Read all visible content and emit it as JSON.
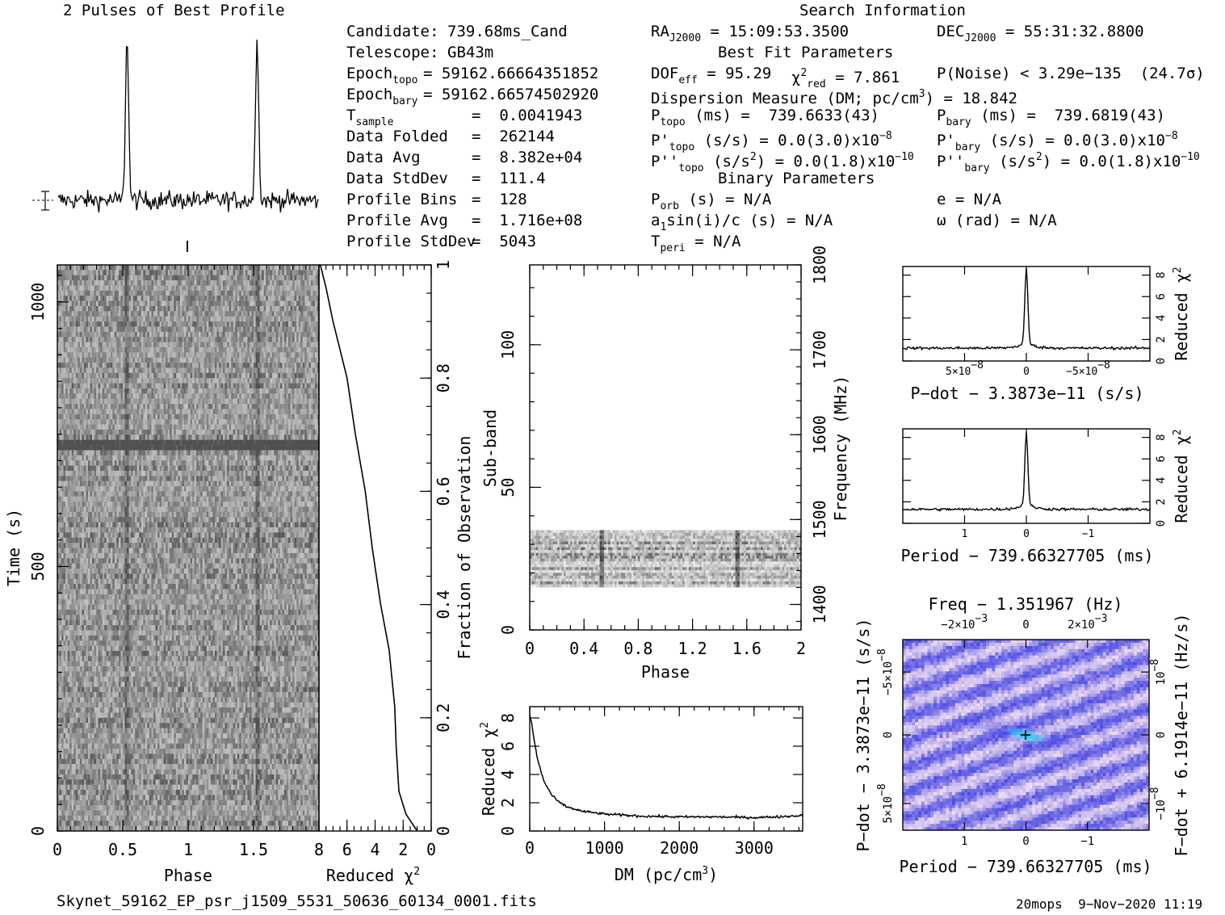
{
  "header": {
    "profile_title": "2 Pulses of Best Profile",
    "search_title": "Search Information",
    "best_fit_title": "Best Fit Parameters",
    "binary_title": "Binary Parameters"
  },
  "info_left": [
    {
      "label": "Candidate:",
      "value": "739.68ms_Cand"
    },
    {
      "label": "Telescope:",
      "value": "GB43m"
    },
    {
      "label": "Epoch",
      "sub": "topo",
      "value": "= 59162.66664351852"
    },
    {
      "label": "Epoch",
      "sub": "bary",
      "value": "= 59162.66574502920"
    },
    {
      "label": "T",
      "sub": "sample",
      "value": "=  0.0041943"
    },
    {
      "label": "Data Folded",
      "value": "=  262144"
    },
    {
      "label": "Data Avg",
      "value": "=  8.382e+04"
    },
    {
      "label": "Data StdDev",
      "value": "=  111.4"
    },
    {
      "label": "Profile Bins",
      "value": "=  128"
    },
    {
      "label": "Profile Avg",
      "value": "=  1.716e+08"
    },
    {
      "label": "Profile StdDev",
      "value": "=  5043"
    }
  ],
  "info_right": {
    "ra": {
      "label": "RA",
      "sub": "J2000",
      "value": "= 15:09:53.3500"
    },
    "dec": {
      "label": "DEC",
      "sub": "J2000",
      "value": "= 55:31:32.8800"
    },
    "dof": {
      "label": "DOF",
      "sub": "eff",
      "value": "= 95.29"
    },
    "chi2": {
      "label": "χ",
      "sup": "2",
      "sub": "red",
      "value": "= 7.861"
    },
    "pnoise": "P(Noise) < 3.29e−135  (24.7σ)",
    "dm": {
      "label": "Dispersion Measure (DM; pc/cm",
      "sup": "3",
      "value": ") = 18.842"
    },
    "p_topo": {
      "label": "P",
      "sub": "topo",
      "value": "(ms) =  739.6633(43)"
    },
    "p_bary": {
      "label": "P",
      "sub": "bary",
      "value": "(ms) =  739.6819(43)"
    },
    "pd_topo": {
      "label": "P'",
      "sub": "topo",
      "value": "(s/s) = 0.0(3.0)x10",
      "exp": "−8"
    },
    "pd_bary": {
      "label": "P'",
      "sub": "bary",
      "value": "(s/s) = 0.0(3.0)x10",
      "exp": "−8"
    },
    "pdd_topo": {
      "label": "P''",
      "sub": "topo",
      "value": "(s/s",
      "sup": "2",
      "value2": ") = 0.0(1.8)x10",
      "exp": "−10"
    },
    "pdd_bary": {
      "label": "P''",
      "sub": "bary",
      "value": "(s/s",
      "sup": "2",
      "value2": ") = 0.0(1.8)x10",
      "exp": "−10"
    },
    "porb": {
      "label": "P",
      "sub": "orb",
      "value": "(s) = N/A"
    },
    "e": "e = N/A",
    "a1": {
      "label": "a",
      "sub": "1",
      "value": "sin(i)/c (s) = N/A"
    },
    "omega": "ω (rad) = N/A",
    "tperi": {
      "label": "T",
      "sub": "peri",
      "value": "= N/A"
    }
  },
  "footer": {
    "filename": "Skynet_59162_EP_psr_j1509_5531_50636_60134_0001.fits",
    "stamp": "20mops  9−Nov−2020 11:19"
  },
  "chart_data": [
    {
      "id": "pulse-profile",
      "type": "line",
      "title": "2 Pulses of Best Profile",
      "x": [
        0,
        2
      ],
      "peaks_phase": [
        0.53,
        1.53
      ],
      "ylabel": "",
      "xlabel": ""
    },
    {
      "id": "time-phase",
      "type": "heatmap",
      "xlabel": "Phase",
      "ylabel": "Time (s)",
      "xlim": [
        0,
        2
      ],
      "ylim": [
        0,
        1070
      ],
      "xticks": [
        "0",
        "0.5",
        "1",
        "1.5"
      ],
      "yticks": [
        "0",
        "500",
        "1000"
      ],
      "pulse_phase": [
        0.53,
        1.53
      ],
      "bright_time_band": [
        720,
        740
      ]
    },
    {
      "id": "redchi-vs-time",
      "type": "line",
      "xlabel": "Reduced χ",
      "xlabel_sup": "2",
      "ylabel": "Fraction of Observation",
      "xlim": [
        8,
        0
      ],
      "ylim": [
        0,
        1
      ],
      "xticks": [
        "8",
        "6",
        "4",
        "2",
        "0"
      ],
      "yticks": [
        "0",
        "0.2",
        "0.4",
        "0.6",
        "0.8",
        "1"
      ],
      "x": [
        1,
        1.8,
        2.3,
        2.5,
        2.6,
        3.0,
        3.6,
        4.2,
        4.7,
        5.4,
        6.0,
        7.0,
        7.5,
        7.9
      ],
      "y": [
        0,
        0.03,
        0.07,
        0.15,
        0.22,
        0.32,
        0.4,
        0.5,
        0.6,
        0.7,
        0.8,
        0.9,
        0.96,
        1.0
      ]
    },
    {
      "id": "subband-phase",
      "type": "heatmap",
      "xlabel": "Phase",
      "ylabel": "Sub-band",
      "y2label": "Frequency (MHz)",
      "xlim": [
        0,
        2
      ],
      "ylim": [
        0,
        128
      ],
      "y2lim": [
        1370,
        1800
      ],
      "xticks": [
        "0",
        "0.4",
        "0.8",
        "1.2",
        "1.6",
        "2"
      ],
      "yticks": [
        "0",
        "50",
        "100"
      ],
      "y2ticks": [
        "1400",
        "1500",
        "1600",
        "1700",
        "1800"
      ],
      "data_band": [
        15,
        35
      ],
      "pulse_phase": [
        0.53,
        1.53
      ]
    },
    {
      "id": "redchi-vs-dm",
      "type": "line",
      "xlabel": "DM (pc/cm",
      "xlabel_sup": "3",
      "xlabel_end": ")",
      "ylabel": "Reduced χ",
      "ylabel_sup": "2",
      "xlim": [
        0,
        3650
      ],
      "ylim": [
        0,
        8.8
      ],
      "xticks": [
        "0",
        "1000",
        "2000",
        "3000"
      ],
      "yticks": [
        "0",
        "2",
        "4",
        "6",
        "8"
      ],
      "x": [
        0,
        20,
        60,
        100,
        150,
        200,
        300,
        400,
        500,
        700,
        1000,
        1500,
        2000,
        2500,
        3000,
        3300,
        3650
      ],
      "y": [
        8.2,
        7.8,
        6.4,
        5.2,
        4.2,
        3.4,
        2.5,
        2.0,
        1.7,
        1.4,
        1.2,
        1.05,
        1.0,
        1.0,
        0.95,
        1.0,
        1.1
      ]
    },
    {
      "id": "redchi-vs-pdot",
      "type": "line",
      "xlabel": "P−dot − 3.3873e−11 (s/s)",
      "ylabel": "Reduced χ",
      "ylabel_sup": "2",
      "xlim": [
        7.5e-08,
        -7.5e-08
      ],
      "ylim": [
        0,
        8.8
      ],
      "xticks": [
        "5×10",
        "0",
        "−5×10"
      ],
      "xtick_exp": "−8",
      "yticks": [
        "0",
        "2",
        "4",
        "6",
        "8"
      ],
      "peak_value": 8.0,
      "baseline": 1.2
    },
    {
      "id": "redchi-vs-period",
      "type": "line",
      "xlabel": "Period − 739.66327705 (ms)",
      "ylabel": "Reduced χ",
      "ylabel_sup": "2",
      "xlim": [
        2,
        -2
      ],
      "ylim": [
        0,
        8.8
      ],
      "xticks": [
        "1",
        "0",
        "−1"
      ],
      "yticks": [
        "0",
        "2",
        "4",
        "6",
        "8"
      ],
      "peak_value": 7.9,
      "baseline": 1.3
    },
    {
      "id": "period-pdot-plane",
      "type": "heatmap",
      "title": "Freq − 1.351967 (Hz)",
      "xlabel": "Period − 739.66327705 (ms)",
      "ylabel": "P−dot − 3.3873e−11 (s/s)",
      "y2label": "F−dot + 6.1914e−11 (Hz/s)",
      "xticks": [
        "1",
        "0",
        "−1"
      ],
      "topticks": [
        "−2×10",
        "0",
        "2×10"
      ],
      "topexp": "−3",
      "yticks": [
        "−5×10",
        "0",
        "5×10"
      ],
      "yexp": "−8",
      "y2ticks": [
        "10",
        "0",
        "−10"
      ],
      "y2exp": "−8",
      "colors": {
        "low": "#3a3ae0",
        "high": "#f2e0f2",
        "peak": "#20c8f0"
      }
    }
  ]
}
